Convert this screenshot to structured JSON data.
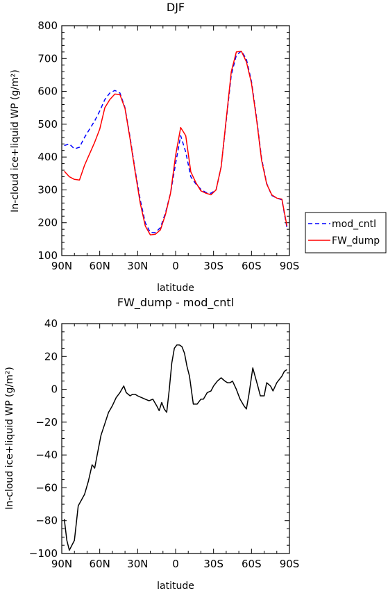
{
  "chart_data": [
    {
      "type": "line",
      "title": "DJF",
      "xlabel": "latitude",
      "ylabel": "In-cloud ice+liquid WP (g/m²)",
      "ylim": [
        100,
        800
      ],
      "yticks": [
        100,
        200,
        300,
        400,
        500,
        600,
        700,
        800
      ],
      "xticks": [
        "90N",
        "60N",
        "30N",
        "0",
        "30S",
        "60S",
        "90S"
      ],
      "legend_position": "right",
      "series": [
        {
          "name": "mod_cntl",
          "style": "dashed",
          "color": "#0000ff",
          "x": [
            -88,
            -84,
            -80,
            -76,
            -72,
            -68,
            -64,
            -60,
            -56,
            -52,
            -48,
            -44,
            -40,
            -36,
            -32,
            -28,
            -24,
            -20,
            -16,
            -12,
            -8,
            -4,
            0,
            4,
            8,
            12,
            16,
            20,
            24,
            28,
            32,
            36,
            40,
            44,
            48,
            52,
            56,
            60,
            64,
            68,
            72,
            76,
            80,
            84,
            88
          ],
          "values": [
            435,
            440,
            425,
            430,
            460,
            485,
            510,
            540,
            575,
            595,
            603,
            595,
            550,
            460,
            360,
            270,
            200,
            170,
            170,
            185,
            230,
            290,
            380,
            465,
            415,
            340,
            318,
            302,
            292,
            290,
            300,
            370,
            510,
            650,
            710,
            723,
            698,
            630,
            520,
            395,
            320,
            283,
            275,
            270,
            185
          ]
        },
        {
          "name": "FW_dump",
          "style": "solid",
          "color": "#ff0000",
          "x": [
            -88,
            -84,
            -80,
            -76,
            -72,
            -68,
            -64,
            -60,
            -56,
            -52,
            -48,
            -44,
            -40,
            -36,
            -32,
            -28,
            -24,
            -20,
            -16,
            -12,
            -8,
            -4,
            0,
            4,
            8,
            12,
            16,
            20,
            24,
            28,
            32,
            36,
            40,
            44,
            48,
            52,
            56,
            60,
            64,
            68,
            72,
            76,
            80,
            84,
            88
          ],
          "values": [
            357,
            340,
            332,
            330,
            375,
            410,
            445,
            485,
            550,
            575,
            592,
            590,
            548,
            455,
            355,
            260,
            190,
            163,
            165,
            178,
            225,
            290,
            405,
            490,
            465,
            355,
            322,
            297,
            290,
            285,
            300,
            370,
            515,
            660,
            720,
            722,
            690,
            625,
            515,
            390,
            318,
            285,
            275,
            272,
            190
          ]
        }
      ]
    },
    {
      "type": "line",
      "title": "FW_dump - mod_cntl",
      "xlabel": "latitude",
      "ylabel": "In-cloud ice+liquid WP (g/m²)",
      "ylim": [
        -100,
        40
      ],
      "yticks": [
        -100,
        -80,
        -60,
        -40,
        -20,
        0,
        20,
        40
      ],
      "xticks": [
        "90N",
        "60N",
        "30N",
        "0",
        "30S",
        "60S",
        "90S"
      ],
      "series": [
        {
          "color": "#000000",
          "style": "solid",
          "x": [
            -88,
            -86,
            -84,
            -80,
            -77,
            -72,
            -69,
            -66,
            -64,
            -62,
            -59,
            -56,
            -53,
            -50,
            -47,
            -44,
            -41,
            -39,
            -36,
            -34,
            -32,
            -30,
            -27,
            -24,
            -21,
            -18,
            -15,
            -13,
            -11,
            -9,
            -7,
            -5,
            -3,
            -1,
            1,
            3,
            5,
            7,
            9,
            11,
            14,
            17,
            20,
            22,
            25,
            28,
            30,
            33,
            36,
            39,
            41,
            43,
            45,
            48,
            51,
            54,
            56,
            58,
            61,
            65,
            67,
            70,
            72,
            75,
            77,
            80,
            82,
            84,
            86,
            88
          ],
          "values": [
            -79,
            -92,
            -98,
            -92,
            -71,
            -64,
            -56,
            -46,
            -48,
            -40,
            -28,
            -21,
            -14,
            -10,
            -5,
            -2,
            2,
            -2,
            -4,
            -3,
            -3,
            -4,
            -5,
            -6,
            -7,
            -6,
            -10,
            -13,
            -8,
            -12,
            -14,
            0,
            16,
            25,
            27,
            27,
            26,
            22,
            14,
            8,
            -9,
            -9,
            -6,
            -6,
            -2,
            -1,
            2,
            5,
            7,
            5,
            4,
            4,
            5,
            0,
            -6,
            -10,
            -12,
            -3,
            13,
            2,
            -4,
            -4,
            4,
            2,
            -1,
            4,
            6,
            8,
            11,
            12
          ]
        }
      ]
    }
  ]
}
